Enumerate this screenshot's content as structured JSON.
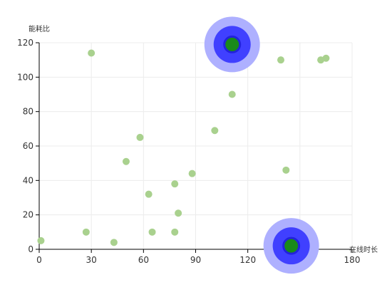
{
  "chart_data": {
    "type": "scatter",
    "title": "",
    "xlabel": "在线时长",
    "ylabel": "能耗比",
    "xlim": [
      0,
      180
    ],
    "ylim": [
      0,
      120
    ],
    "x_ticks": [
      "0",
      "30",
      "60",
      "90",
      "120",
      "150",
      "180"
    ],
    "y_ticks": [
      "0",
      "20",
      "40",
      "60",
      "80",
      "100",
      "120"
    ],
    "grid": true,
    "colors": {
      "point": "#a9d18e",
      "highlight_core": "#1a8a1a",
      "highlight_ring": "#2222dd",
      "highlight_inner_halo": "#4040ff",
      "highlight_outer_halo": "#aeb0ff",
      "axis": "#000000",
      "grid": "#ececec"
    },
    "series": [
      {
        "points": [
          [
            1,
            5
          ],
          [
            27,
            10
          ],
          [
            30,
            114
          ],
          [
            43,
            4
          ],
          [
            50,
            51
          ],
          [
            58,
            65
          ],
          [
            63,
            32
          ],
          [
            65,
            10
          ],
          [
            78,
            38
          ],
          [
            78,
            10
          ],
          [
            80,
            21
          ],
          [
            88,
            44
          ],
          [
            101,
            69
          ],
          [
            111,
            90
          ],
          [
            139,
            110
          ],
          [
            142,
            46
          ],
          [
            162,
            110
          ],
          [
            165,
            111
          ]
        ]
      }
    ],
    "highlighted_points": [
      [
        111,
        119
      ],
      [
        145,
        2
      ]
    ]
  }
}
